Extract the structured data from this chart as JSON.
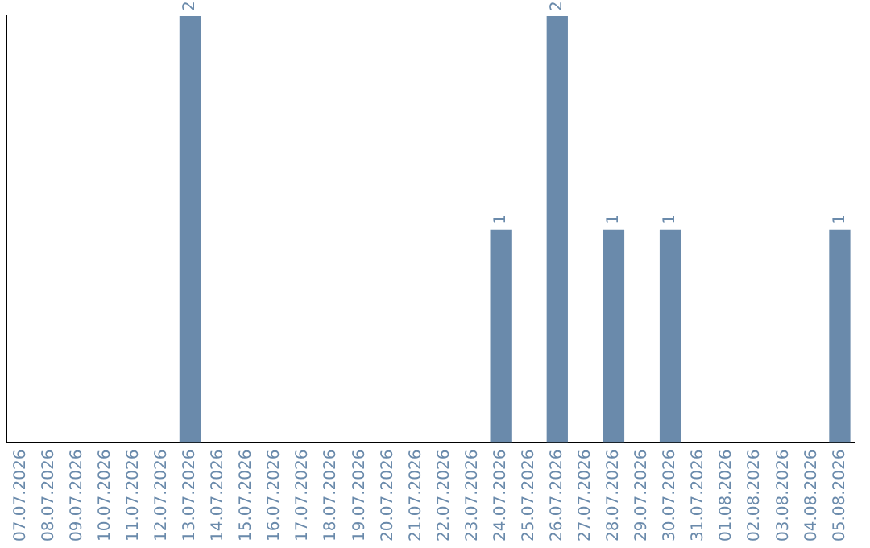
{
  "chart_data": {
    "type": "bar",
    "categories": [
      "07.07.2026",
      "08.07.2026",
      "09.07.2026",
      "10.07.2026",
      "11.07.2026",
      "12.07.2026",
      "13.07.2026",
      "14.07.2026",
      "15.07.2026",
      "16.07.2026",
      "17.07.2026",
      "18.07.2026",
      "19.07.2026",
      "20.07.2026",
      "21.07.2026",
      "22.07.2026",
      "23.07.2026",
      "24.07.2026",
      "25.07.2026",
      "26.07.2026",
      "27.07.2026",
      "28.07.2026",
      "29.07.2026",
      "30.07.2026",
      "31.07.2026",
      "01.08.2026",
      "02.08.2026",
      "03.08.2026",
      "04.08.2026",
      "05.08.2026"
    ],
    "values": [
      0,
      0,
      0,
      0,
      0,
      0,
      2,
      0,
      0,
      0,
      0,
      0,
      0,
      0,
      0,
      0,
      0,
      1,
      0,
      2,
      0,
      1,
      0,
      1,
      0,
      0,
      0,
      0,
      0,
      1
    ],
    "value_labels": [
      null,
      null,
      null,
      null,
      null,
      null,
      "2",
      null,
      null,
      null,
      null,
      null,
      null,
      null,
      null,
      null,
      null,
      "1",
      null,
      "2",
      null,
      "1",
      null,
      "1",
      null,
      null,
      null,
      null,
      null,
      "1"
    ],
    "color": "#6a8aab",
    "ylim": [
      0,
      2
    ],
    "tick_labels": "x",
    "grid": false,
    "legend": false
  }
}
